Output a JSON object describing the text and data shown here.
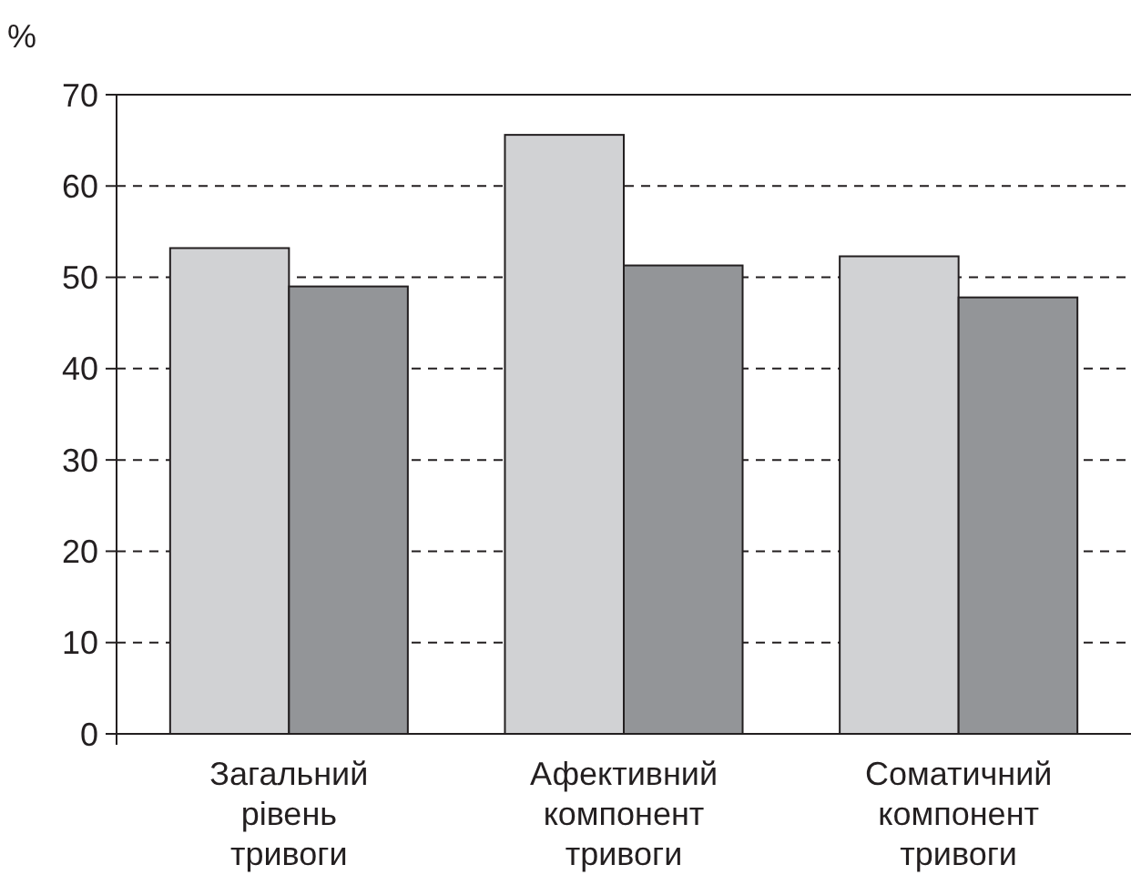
{
  "chart_data": {
    "type": "bar",
    "ylabel": "%",
    "categories": [
      "Загальний рівень тривоги",
      "Афективний компонент тривоги",
      "Соматичний компонент тривоги"
    ],
    "series": [
      {
        "color": "#d1d2d4",
        "values": [
          53.2,
          65.6,
          52.3
        ]
      },
      {
        "color": "#939598",
        "values": [
          49.0,
          51.3,
          47.8
        ]
      }
    ],
    "ylim": [
      0,
      70
    ],
    "yticks": [
      0,
      10,
      20,
      30,
      40,
      50,
      60,
      70
    ],
    "grid": "y"
  }
}
